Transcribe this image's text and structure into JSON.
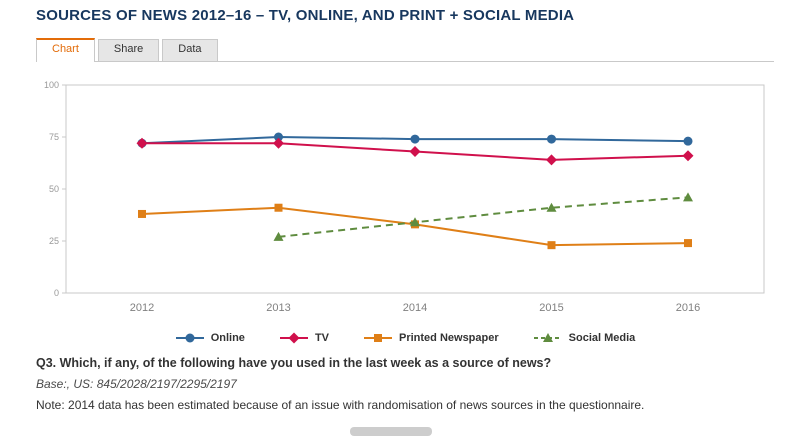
{
  "header": {
    "title": "SOURCES OF NEWS 2012–16 – TV, ONLINE, AND PRINT + SOCIAL MEDIA"
  },
  "tabs": [
    {
      "label": "Chart",
      "active": true
    },
    {
      "label": "Share",
      "active": false
    },
    {
      "label": "Data",
      "active": false
    }
  ],
  "colors": {
    "title": "#17375e",
    "active_tab": "#e36c09",
    "axis_text": "#808080",
    "plot_border": "#c9c9c9"
  },
  "chart_data": {
    "type": "line",
    "title": "Sources of news 2012–16 – TV, online, and print + social media",
    "categories": [
      "2012",
      "2013",
      "2014",
      "2015",
      "2016"
    ],
    "series": [
      {
        "name": "Online",
        "color": "#31689b",
        "marker": "circle",
        "dash": false,
        "values": [
          72,
          75,
          74,
          74,
          73
        ]
      },
      {
        "name": "TV",
        "color": "#d0104c",
        "marker": "diamond",
        "dash": false,
        "values": [
          72,
          72,
          68,
          64,
          66
        ]
      },
      {
        "name": "Printed Newspaper",
        "color": "#df7f17",
        "marker": "square",
        "dash": false,
        "values": [
          38,
          41,
          33,
          23,
          24
        ]
      },
      {
        "name": "Social Media",
        "color": "#5f8c3f",
        "marker": "triangle",
        "dash": true,
        "values": [
          null,
          27,
          34,
          41,
          46
        ]
      }
    ],
    "xlabel": "",
    "ylabel": "",
    "ylim": [
      0,
      100
    ],
    "yticks": [
      0,
      25,
      50,
      75,
      100
    ],
    "grid": false,
    "legend_position": "bottom"
  },
  "footer": {
    "question": "Q3. Which, if any, of the following have you used in the last week as a source of news?",
    "base": "Base:, US: 845/2028/2197/2295/2197",
    "note": "Note: 2014 data has been estimated because of an issue with randomisation of news sources in the questionnaire."
  }
}
